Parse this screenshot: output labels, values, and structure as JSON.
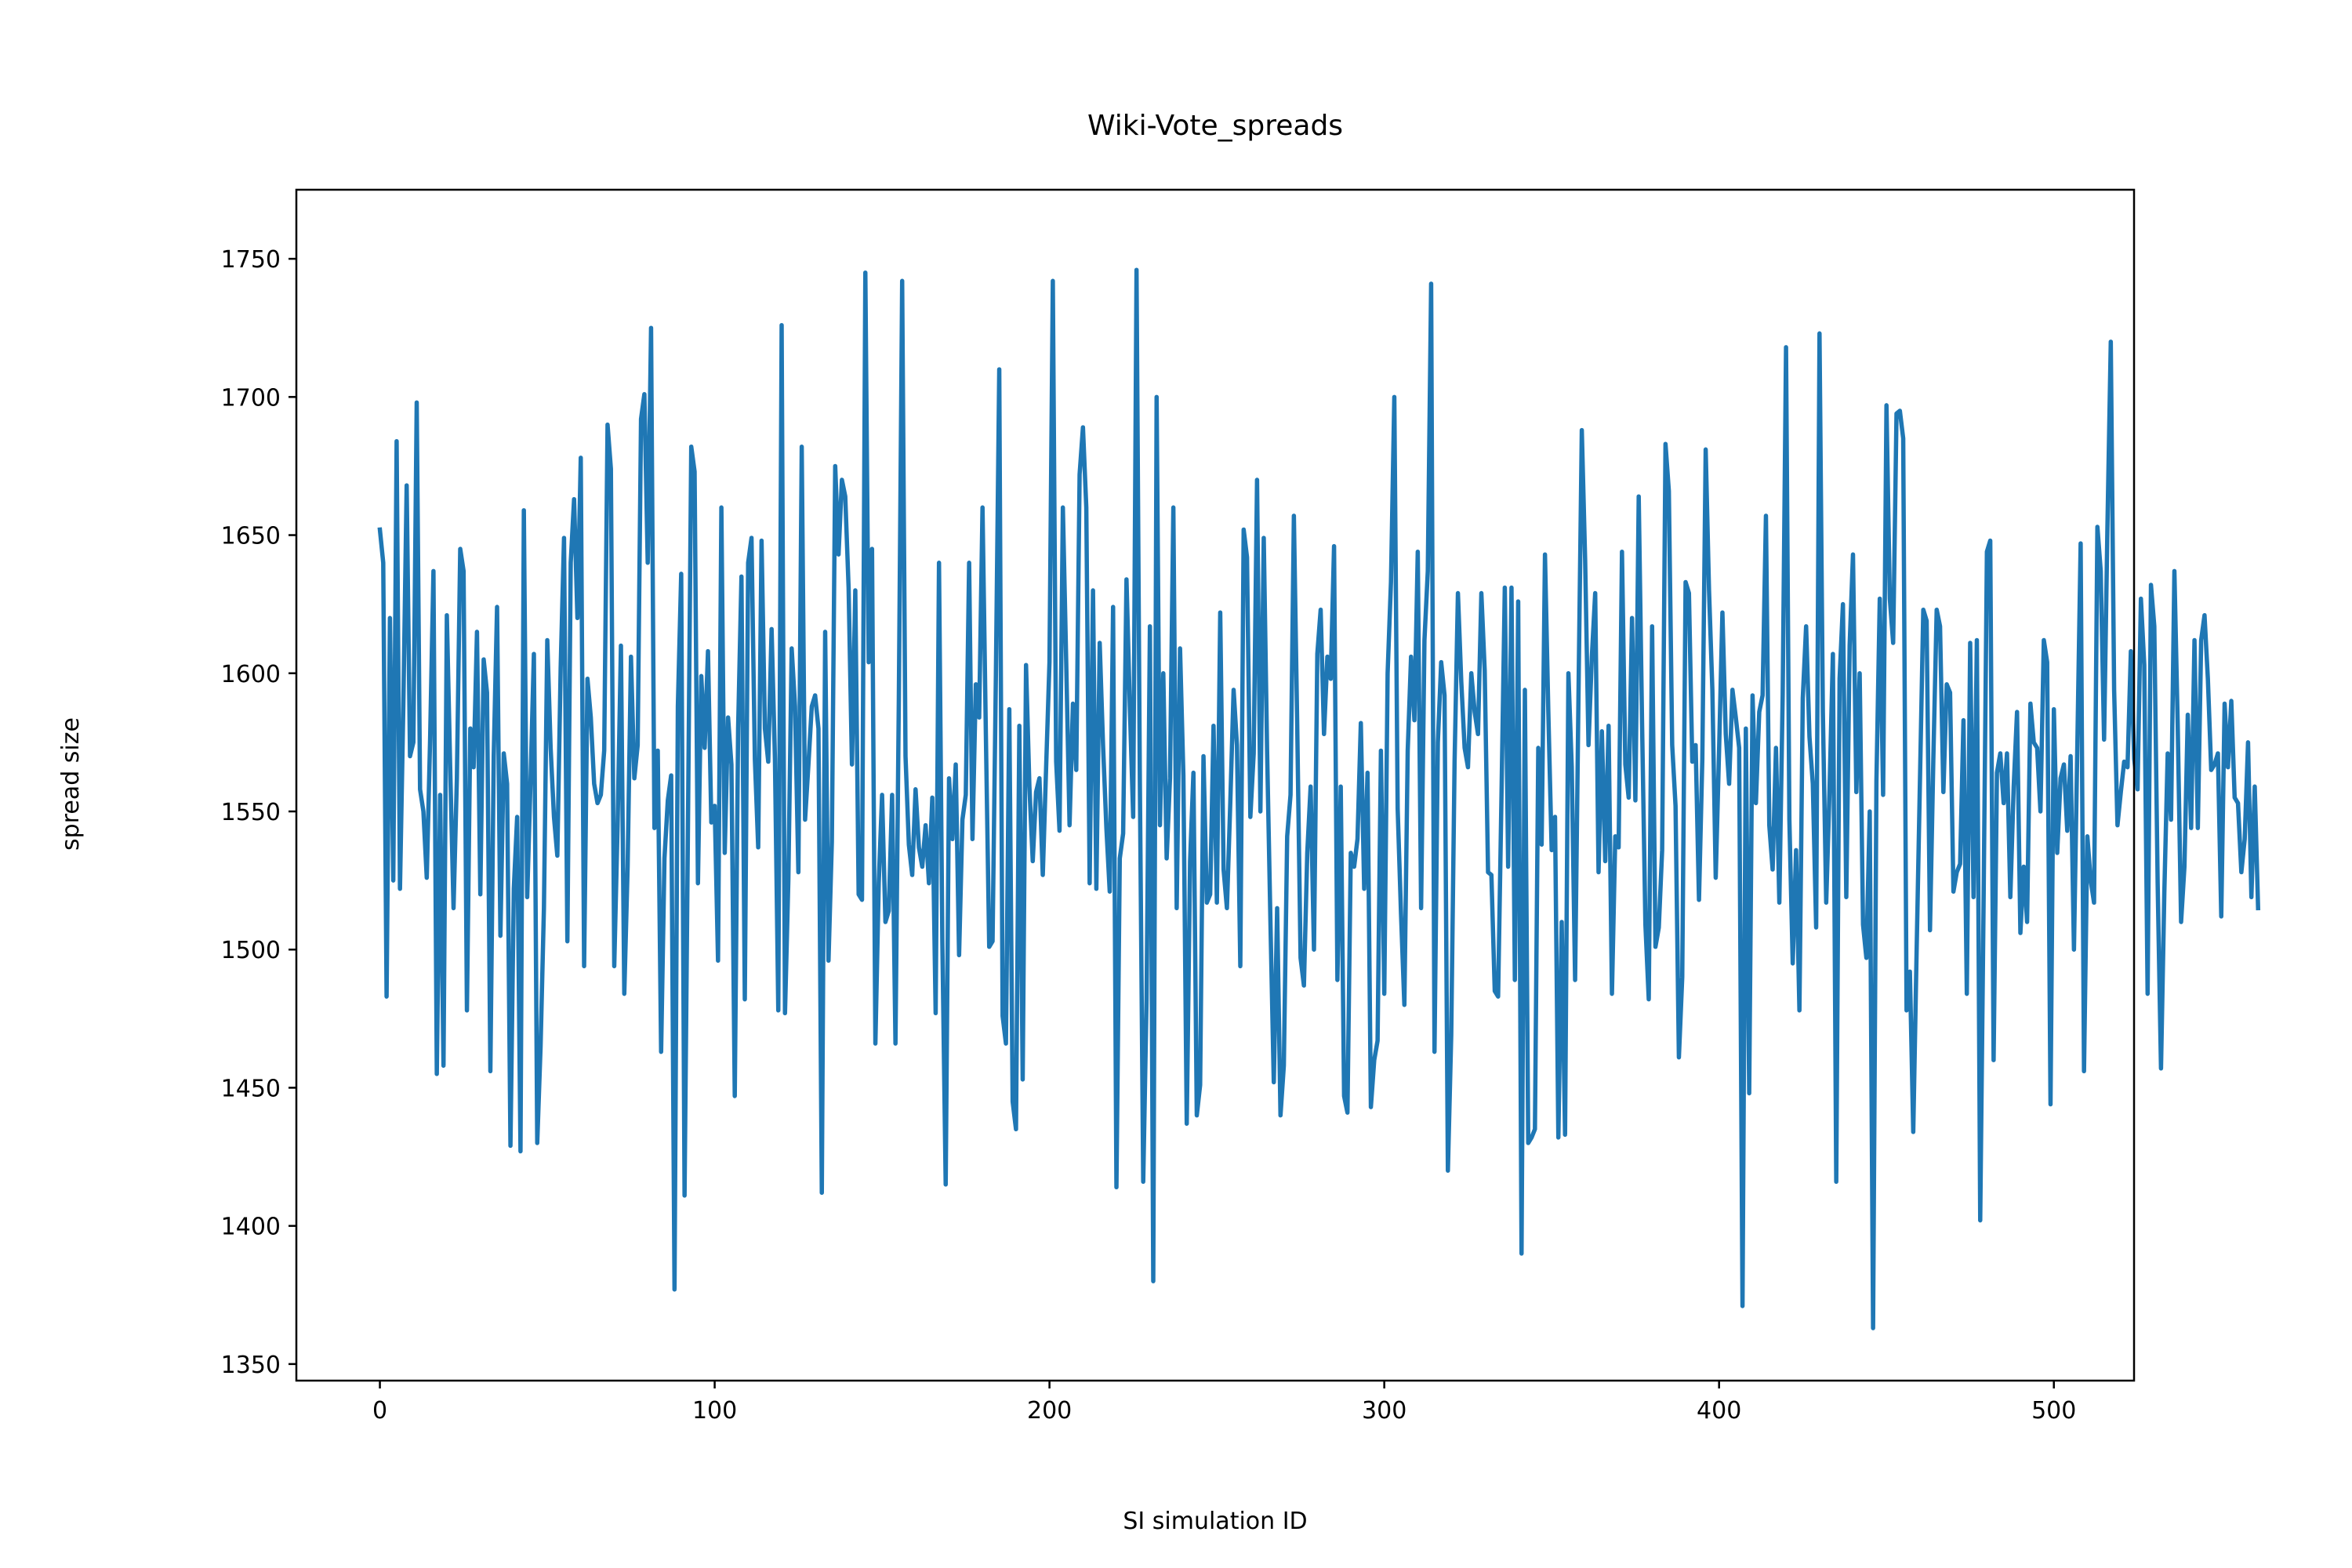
{
  "chart_data": {
    "type": "line",
    "title": "Wiki-Vote_spreads",
    "xlabel": "SI simulation ID",
    "ylabel": "spread size",
    "xlim": [
      -24.95,
      523.95
    ],
    "ylim": [
      1344,
      1775
    ],
    "xticks": [
      0,
      100,
      200,
      300,
      400,
      500
    ],
    "yticks": [
      1350,
      1400,
      1450,
      1500,
      1550,
      1600,
      1650,
      1700,
      1750
    ],
    "grid": false,
    "legend": "none",
    "line_color": "#1f77b4",
    "series": [
      {
        "x_start": 0,
        "x_step": 1,
        "values": [
          1652,
          1640,
          1483,
          1620,
          1525,
          1684,
          1522,
          1588,
          1668,
          1570,
          1575,
          1698,
          1558,
          1550,
          1526,
          1576,
          1637,
          1455,
          1556,
          1458,
          1621,
          1566,
          1515,
          1562,
          1645,
          1637,
          1478,
          1580,
          1566,
          1615,
          1520,
          1605,
          1593,
          1456,
          1570,
          1624,
          1505,
          1571,
          1560,
          1429,
          1522,
          1548,
          1427,
          1659,
          1519,
          1561,
          1607,
          1430,
          1465,
          1515,
          1612,
          1573,
          1548,
          1534,
          1602,
          1649,
          1503,
          1640,
          1663,
          1620,
          1678,
          1494,
          1598,
          1584,
          1560,
          1553,
          1556,
          1572,
          1690,
          1674,
          1494,
          1545,
          1610,
          1484,
          1530,
          1606,
          1562,
          1574,
          1692,
          1701,
          1640,
          1725,
          1544,
          1572,
          1463,
          1533,
          1554,
          1563,
          1377,
          1588,
          1636,
          1411,
          1542,
          1682,
          1673,
          1524,
          1599,
          1573,
          1608,
          1546,
          1552,
          1496,
          1660,
          1535,
          1584,
          1567,
          1447,
          1580,
          1635,
          1482,
          1640,
          1649,
          1569,
          1537,
          1648,
          1580,
          1568,
          1616,
          1569,
          1478,
          1726,
          1477,
          1525,
          1609,
          1588,
          1528,
          1682,
          1547,
          1567,
          1588,
          1592,
          1580,
          1412,
          1615,
          1496,
          1539,
          1675,
          1643,
          1670,
          1664,
          1631,
          1567,
          1630,
          1520,
          1518,
          1745,
          1604,
          1645,
          1466,
          1524,
          1556,
          1510,
          1514,
          1556,
          1466,
          1590,
          1742,
          1570,
          1538,
          1527,
          1558,
          1537,
          1530,
          1545,
          1524,
          1555,
          1477,
          1640,
          1503,
          1415,
          1562,
          1540,
          1567,
          1498,
          1547,
          1556,
          1640,
          1540,
          1596,
          1584,
          1660,
          1578,
          1501,
          1503,
          1600,
          1710,
          1476,
          1466,
          1587,
          1445,
          1435,
          1581,
          1453,
          1603,
          1559,
          1532,
          1557,
          1562,
          1527,
          1566,
          1604,
          1742,
          1568,
          1543,
          1660,
          1604,
          1545,
          1589,
          1565,
          1672,
          1689,
          1660,
          1524,
          1630,
          1522,
          1611,
          1574,
          1544,
          1521,
          1624,
          1414,
          1533,
          1542,
          1634,
          1588,
          1548,
          1746,
          1560,
          1416,
          1482,
          1617,
          1380,
          1700,
          1545,
          1600,
          1533,
          1562,
          1660,
          1515,
          1609,
          1563,
          1437,
          1532,
          1564,
          1440,
          1451,
          1570,
          1517,
          1520,
          1581,
          1517,
          1622,
          1529,
          1515,
          1553,
          1594,
          1574,
          1494,
          1652,
          1642,
          1548,
          1571,
          1670,
          1550,
          1649,
          1572,
          1510,
          1452,
          1515,
          1440,
          1458,
          1541,
          1556,
          1657,
          1581,
          1497,
          1487,
          1535,
          1559,
          1500,
          1607,
          1623,
          1578,
          1606,
          1598,
          1646,
          1489,
          1559,
          1447,
          1441,
          1535,
          1530,
          1540,
          1582,
          1522,
          1564,
          1443,
          1460,
          1467,
          1572,
          1484,
          1600,
          1633,
          1700,
          1551,
          1513,
          1480,
          1572,
          1606,
          1583,
          1644,
          1515,
          1612,
          1637,
          1741,
          1463,
          1575,
          1604,
          1592,
          1420,
          1469,
          1568,
          1629,
          1597,
          1573,
          1566,
          1600,
          1586,
          1578,
          1629,
          1601,
          1528,
          1527,
          1485,
          1483,
          1555,
          1631,
          1530,
          1631,
          1489,
          1626,
          1390,
          1594,
          1430,
          1432,
          1435,
          1573,
          1538,
          1643,
          1586,
          1536,
          1548,
          1432,
          1510,
          1433,
          1600,
          1566,
          1489,
          1591,
          1688,
          1641,
          1574,
          1606,
          1629,
          1528,
          1579,
          1532,
          1581,
          1484,
          1541,
          1537,
          1644,
          1567,
          1555,
          1620,
          1554,
          1664,
          1582,
          1509,
          1482,
          1617,
          1501,
          1508,
          1536,
          1683,
          1666,
          1574,
          1552,
          1461,
          1490,
          1633,
          1629,
          1568,
          1574,
          1518,
          1569,
          1681,
          1630,
          1594,
          1526,
          1572,
          1622,
          1578,
          1560,
          1594,
          1584,
          1573,
          1371,
          1580,
          1448,
          1592,
          1553,
          1586,
          1592,
          1657,
          1545,
          1529,
          1573,
          1517,
          1592,
          1718,
          1547,
          1495,
          1536,
          1478,
          1591,
          1617,
          1577,
          1560,
          1508,
          1723,
          1586,
          1517,
          1558,
          1607,
          1416,
          1598,
          1625,
          1519,
          1610,
          1643,
          1557,
          1600,
          1509,
          1497,
          1550,
          1363,
          1561,
          1627,
          1556,
          1697,
          1627,
          1611,
          1694,
          1695,
          1685,
          1478,
          1492,
          1434,
          1499,
          1561,
          1623,
          1619,
          1507,
          1569,
          1623,
          1617,
          1557,
          1596,
          1593,
          1521,
          1528,
          1531,
          1583,
          1484,
          1611,
          1519,
          1612,
          1402,
          1516,
          1644,
          1648,
          1460,
          1564,
          1571,
          1553,
          1571,
          1519,
          1559,
          1586,
          1506,
          1530,
          1510,
          1589,
          1575,
          1573,
          1550,
          1612,
          1604,
          1444,
          1587,
          1535,
          1562,
          1567,
          1543,
          1570,
          1500,
          1573,
          1647,
          1456,
          1541,
          1525,
          1517,
          1653,
          1637,
          1576,
          1653,
          1720,
          1594,
          1545,
          1557,
          1568,
          1566,
          1608,
          1569,
          1558,
          1627,
          1603,
          1484,
          1632,
          1617,
          1524,
          1457,
          1521,
          1571,
          1547,
          1637,
          1581,
          1510,
          1530,
          1585,
          1544,
          1612,
          1544,
          1612,
          1621,
          1598,
          1565,
          1567,
          1571,
          1512,
          1589,
          1566,
          1590,
          1555,
          1553,
          1528,
          1540,
          1575,
          1519,
          1559,
          1515
        ]
      }
    ]
  }
}
